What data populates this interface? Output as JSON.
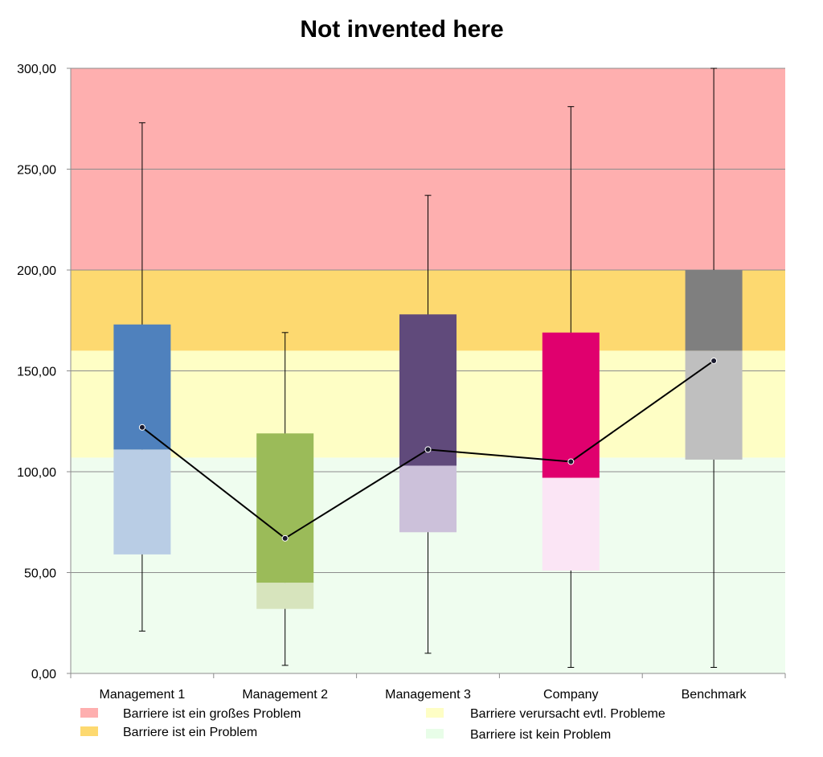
{
  "chart_data": {
    "type": "box",
    "title": "Not invented here",
    "xlabel": "",
    "ylabel": "",
    "ylim": [
      0,
      300
    ],
    "yticks": [
      "0,00",
      "50,00",
      "100,00",
      "150,00",
      "200,00",
      "250,00",
      "300,00"
    ],
    "ytick_values": [
      0,
      50,
      100,
      150,
      200,
      250,
      300
    ],
    "grid": true,
    "categories": [
      "Management 1",
      "Management 2",
      "Management 3",
      "Company",
      "Benchmark"
    ],
    "boxes": [
      {
        "category": "Management 1",
        "min": 21,
        "q1": 59,
        "median": 111,
        "q3": 173,
        "max": 273,
        "color_upper": "#4f81bd",
        "color_lower": "#b9cde5"
      },
      {
        "category": "Management 2",
        "min": 4,
        "q1": 32,
        "median": 45,
        "q3": 119,
        "max": 169,
        "color_upper": "#9bbb59",
        "color_lower": "#d7e4bd"
      },
      {
        "category": "Management 3",
        "min": 10,
        "q1": 70,
        "median": 103,
        "q3": 178,
        "max": 237,
        "color_upper": "#604a7b",
        "color_lower": "#ccc1da"
      },
      {
        "category": "Company",
        "min": 3,
        "q1": 51,
        "median": 97,
        "q3": 169,
        "max": 281,
        "color_upper": "#e0006e",
        "color_lower": "#fbe5f5"
      },
      {
        "category": "Benchmark",
        "min": 3,
        "q1": 106,
        "median": 160,
        "q3": 200,
        "max": 300,
        "color_upper": "#7f7f7f",
        "color_lower": "#bfbfbf"
      }
    ],
    "mean_line": {
      "values": [
        122,
        67,
        111,
        105,
        155
      ],
      "color": "#000000"
    },
    "bands": [
      {
        "label": "Barriere ist kein Problem",
        "from": 0,
        "to": 107,
        "color": "#effdef"
      },
      {
        "label": "Barriere verursacht evtl. Probleme",
        "from": 107,
        "to": 160,
        "color": "#fefec5"
      },
      {
        "label": "Barriere ist ein Problem",
        "from": 160,
        "to": 200,
        "color": "#fdd970"
      },
      {
        "label": "Barriere ist ein großes Problem",
        "from": 200,
        "to": 300,
        "color": "#feafaf"
      }
    ],
    "legend": {
      "position": "bottom",
      "entries": [
        {
          "label": "Barriere ist ein großes Problem",
          "color": "#feafaf"
        },
        {
          "label": "Barriere verursacht evtl.  Probleme",
          "color": "#fefec5"
        },
        {
          "label": "Barriere ist ein Problem",
          "color": "#fdd970"
        },
        {
          "label": "Barriere ist kein Problem",
          "color": "#e8fde8"
        }
      ]
    }
  }
}
